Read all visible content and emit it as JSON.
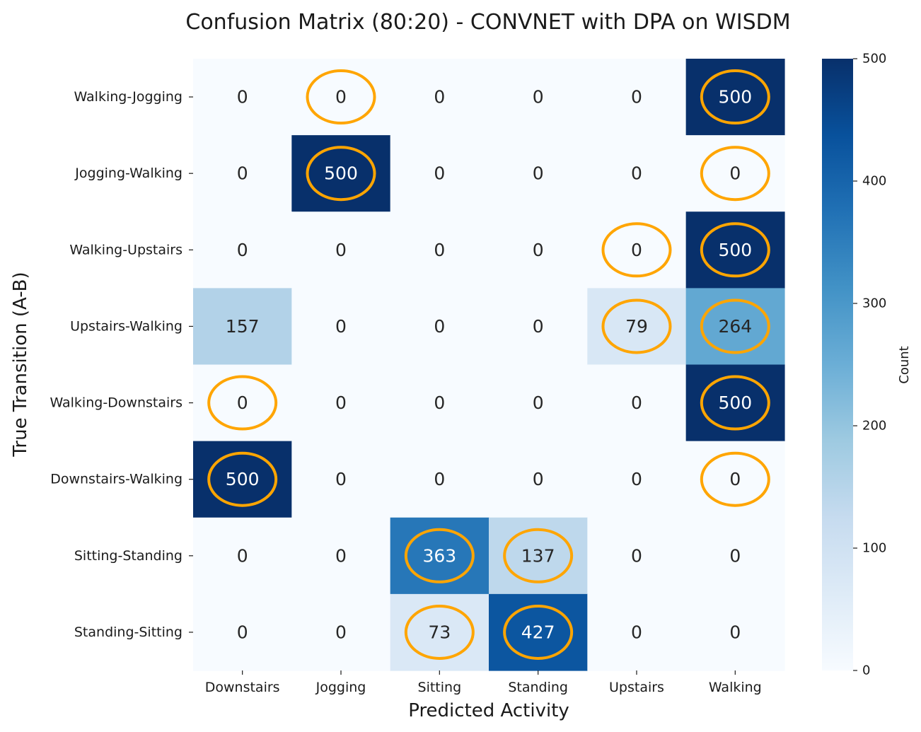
{
  "chart_data": {
    "type": "heatmap",
    "title": "Confusion Matrix (80:20) - CONVNET with DPA on WISDM",
    "xlabel": "Predicted Activity",
    "ylabel": "True Transition (A-B)",
    "columns": [
      "Downstairs",
      "Jogging",
      "Sitting",
      "Standing",
      "Upstairs",
      "Walking"
    ],
    "rows": [
      "Walking-Jogging",
      "Jogging-Walking",
      "Walking-Upstairs",
      "Upstairs-Walking",
      "Walking-Downstairs",
      "Downstairs-Walking",
      "Sitting-Standing",
      "Standing-Sitting"
    ],
    "values": [
      [
        0,
        0,
        0,
        0,
        0,
        500
      ],
      [
        0,
        500,
        0,
        0,
        0,
        0
      ],
      [
        0,
        0,
        0,
        0,
        0,
        500
      ],
      [
        157,
        0,
        0,
        0,
        79,
        264
      ],
      [
        0,
        0,
        0,
        0,
        0,
        500
      ],
      [
        500,
        0,
        0,
        0,
        0,
        0
      ],
      [
        0,
        0,
        363,
        137,
        0,
        0
      ],
      [
        0,
        0,
        73,
        427,
        0,
        0
      ]
    ],
    "highlighted_cells": [
      [
        0,
        1
      ],
      [
        0,
        5
      ],
      [
        1,
        1
      ],
      [
        1,
        5
      ],
      [
        2,
        4
      ],
      [
        2,
        5
      ],
      [
        3,
        4
      ],
      [
        3,
        5
      ],
      [
        4,
        0
      ],
      [
        4,
        5
      ],
      [
        5,
        0
      ],
      [
        5,
        5
      ],
      [
        6,
        2
      ],
      [
        6,
        3
      ],
      [
        7,
        2
      ],
      [
        7,
        3
      ]
    ],
    "highlight_color": "#ffa500",
    "colormap": "Blues",
    "value_range": [
      0,
      500
    ],
    "colorbar": {
      "label": "Count",
      "ticks": [
        0,
        100,
        200,
        300,
        400,
        500
      ]
    }
  }
}
